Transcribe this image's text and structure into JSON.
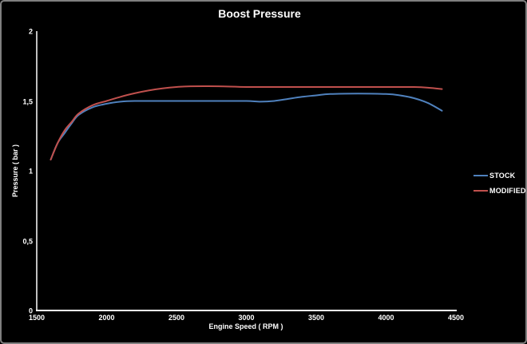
{
  "chart_data": {
    "type": "line",
    "title": "Boost Pressure",
    "xlabel": "Engine Speed ( RPM )",
    "ylabel": "Pressure ( bar )",
    "xlim": [
      1500,
      4500
    ],
    "ylim": [
      0,
      2
    ],
    "grid": false,
    "background_color": "#000000",
    "axis_color": "#ffffff",
    "legend_position": "right",
    "x_ticks": [
      {
        "value": 1500,
        "label": "1500"
      },
      {
        "value": 2000,
        "label": "2000"
      },
      {
        "value": 2500,
        "label": "2500"
      },
      {
        "value": 3000,
        "label": "3000"
      },
      {
        "value": 3500,
        "label": "3500"
      },
      {
        "value": 4000,
        "label": "4000"
      },
      {
        "value": 4500,
        "label": "4500"
      }
    ],
    "y_ticks": [
      {
        "value": 0,
        "label": "0"
      },
      {
        "value": 0.5,
        "label": "0,5"
      },
      {
        "value": 1,
        "label": "1"
      },
      {
        "value": 1.5,
        "label": "1,5"
      },
      {
        "value": 2,
        "label": "2"
      }
    ],
    "series": [
      {
        "name": "STOCK",
        "color": "#4f81bd",
        "x": [
          1600,
          1650,
          1700,
          1750,
          1800,
          1900,
          2000,
          2100,
          2200,
          2400,
          2600,
          2800,
          3000,
          3100,
          3200,
          3300,
          3400,
          3500,
          3600,
          3800,
          4000,
          4100,
          4200,
          4300,
          4400
        ],
        "y": [
          1.08,
          1.2,
          1.27,
          1.34,
          1.4,
          1.455,
          1.48,
          1.495,
          1.5,
          1.5,
          1.5,
          1.5,
          1.5,
          1.495,
          1.5,
          1.515,
          1.53,
          1.54,
          1.55,
          1.553,
          1.55,
          1.54,
          1.52,
          1.485,
          1.43
        ]
      },
      {
        "name": "MODIFIED",
        "color": "#c0504d",
        "x": [
          1600,
          1650,
          1700,
          1750,
          1800,
          1900,
          2000,
          2100,
          2200,
          2300,
          2400,
          2500,
          2600,
          2800,
          3000,
          3200,
          3400,
          3600,
          3800,
          4000,
          4100,
          4200,
          4300,
          4400
        ],
        "y": [
          1.08,
          1.2,
          1.29,
          1.35,
          1.41,
          1.47,
          1.5,
          1.53,
          1.555,
          1.575,
          1.59,
          1.6,
          1.605,
          1.605,
          1.6,
          1.6,
          1.6,
          1.6,
          1.6,
          1.6,
          1.6,
          1.6,
          1.595,
          1.585
        ]
      }
    ]
  }
}
